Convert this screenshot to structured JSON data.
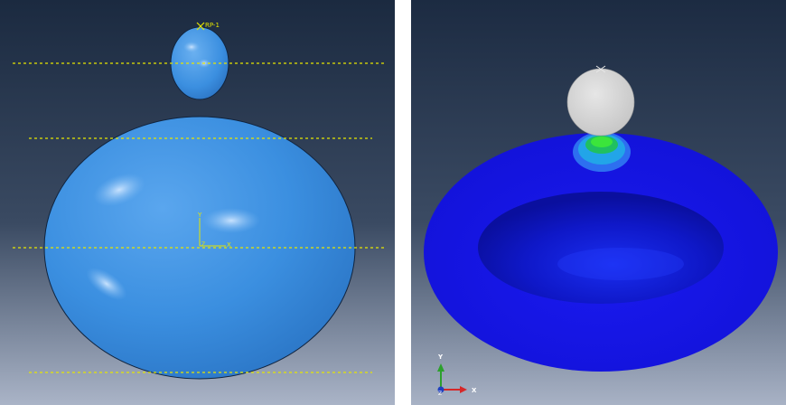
{
  "left_viewport": {
    "reference_point_label": "RP-1",
    "axis_labels": {
      "y": "Y",
      "z": "Z",
      "x": "X"
    }
  },
  "right_viewport": {
    "triad_labels": {
      "y": "Y",
      "z": "Z",
      "x": "X"
    }
  },
  "colors": {
    "background_top": "#1c2a3f",
    "background_bottom": "#a9b3c6",
    "part_blue": "#3a8ee0",
    "reference_line": "#e6e600",
    "contour_blue": "#1414e0",
    "indenter_gray": "#d4d4d4",
    "contour_green": "#20d020",
    "triad_y": "#2ca02c",
    "triad_x": "#d62728",
    "triad_z": "#1f3fbf"
  }
}
